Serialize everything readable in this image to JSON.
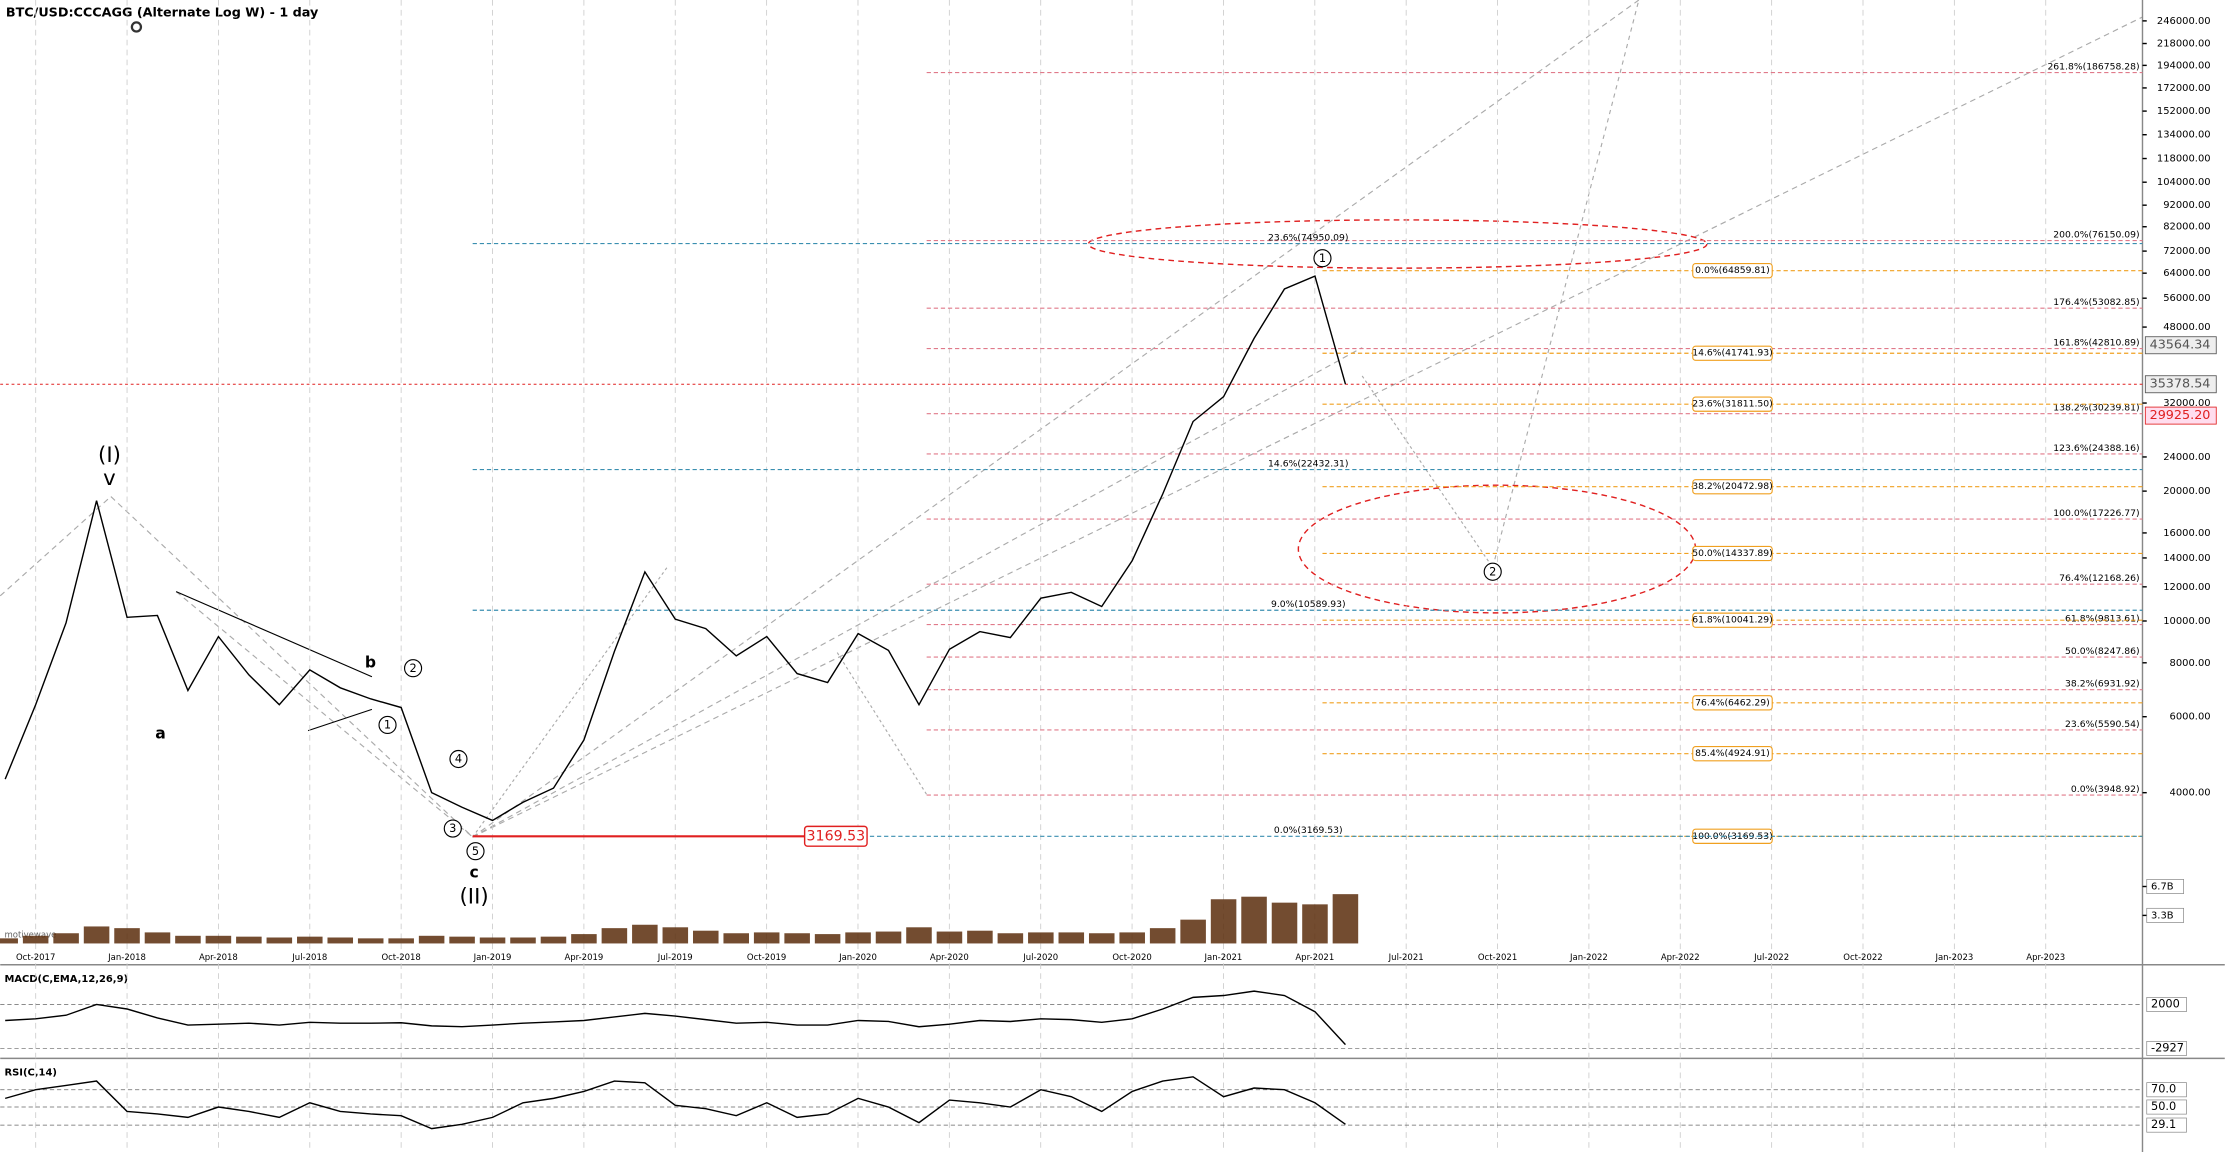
{
  "chart_data": [
    {
      "type": "line",
      "title": "BTC/USD:CCCAGG (Alternate Log W) - 1 day",
      "log_scale": true,
      "x": [
        "Sep-2017",
        "Oct-2017",
        "Nov-2017",
        "Dec-2017",
        "Jan-2018",
        "Feb-2018",
        "Mar-2018",
        "Apr-2018",
        "May-2018",
        "Jun-2018",
        "Jul-2018",
        "Aug-2018",
        "Sep-2018",
        "Oct-2018",
        "Nov-2018",
        "Dec-2018",
        "Jan-2019",
        "Feb-2019",
        "Mar-2019",
        "Apr-2019",
        "May-2019",
        "Jun-2019",
        "Jul-2019",
        "Aug-2019",
        "Sep-2019",
        "Oct-2019",
        "Nov-2019",
        "Dec-2019",
        "Jan-2020",
        "Feb-2020",
        "Mar-2020",
        "Apr-2020",
        "May-2020",
        "Jun-2020",
        "Jul-2020",
        "Aug-2020",
        "Sep-2020",
        "Oct-2020",
        "Nov-2020",
        "Dec-2020",
        "Jan-2021",
        "Feb-2021",
        "Mar-2021",
        "Apr-2021",
        "May-2021"
      ],
      "xticks": [
        "Oct-2017",
        "Jan-2018",
        "Apr-2018",
        "Jul-2018",
        "Oct-2018",
        "Jan-2019",
        "Apr-2019",
        "Jul-2019",
        "Oct-2019",
        "Jan-2020",
        "Apr-2020",
        "Jul-2020",
        "Oct-2020",
        "Jan-2021",
        "Apr-2021",
        "Jul-2021",
        "Oct-2021",
        "Jan-2022",
        "Apr-2022",
        "Jul-2022",
        "Oct-2022",
        "Jan-2023",
        "Apr-2023"
      ],
      "series": [
        {
          "name": "Price",
          "color": "#000000",
          "values": [
            4300,
            6400,
            9900,
            19000,
            10200,
            10300,
            6900,
            9200,
            7500,
            6400,
            7700,
            7000,
            6600,
            6300,
            4000,
            3700,
            3450,
            3800,
            4100,
            5300,
            8500,
            13000,
            10100,
            9600,
            8300,
            9200,
            7550,
            7200,
            9350,
            8550,
            6400,
            8600,
            9450,
            9150,
            11300,
            11650,
            10800,
            13800,
            19700,
            29000,
            33100,
            45200,
            58800,
            63000,
            35378
          ]
        },
        {
          "name": "Volume",
          "color": "#5a2d0c",
          "axis": "y2",
          "values": [
            600000000,
            900000000,
            1200000000,
            2000000000,
            1800000000,
            1300000000,
            900000000,
            900000000,
            800000000,
            700000000,
            800000000,
            700000000,
            600000000,
            600000000,
            900000000,
            800000000,
            700000000,
            700000000,
            800000000,
            1100000000,
            1800000000,
            2200000000,
            1900000000,
            1500000000,
            1200000000,
            1300000000,
            1200000000,
            1100000000,
            1300000000,
            1400000000,
            1900000000,
            1400000000,
            1500000000,
            1200000000,
            1300000000,
            1300000000,
            1200000000,
            1300000000,
            1800000000,
            2800000000,
            5200000000,
            5500000000,
            4800000000,
            4600000000,
            5800000000
          ]
        }
      ],
      "ylim": [
        1789,
        275000
      ],
      "yticks": [
        {
          "value": 246000,
          "label": "246000.00"
        },
        {
          "value": 218000,
          "label": "218000.00"
        },
        {
          "value": 194000,
          "label": "194000.00"
        },
        {
          "value": 172000,
          "label": "172000.00"
        },
        {
          "value": 152000,
          "label": "152000.00"
        },
        {
          "value": 134000,
          "label": "134000.00"
        },
        {
          "value": 118000,
          "label": "118000.00"
        },
        {
          "value": 104000,
          "label": "104000.00"
        },
        {
          "value": 92000,
          "label": "92000.00"
        },
        {
          "value": 82000,
          "label": "82000.00"
        },
        {
          "value": 72000,
          "label": "72000.00"
        },
        {
          "value": 64000,
          "label": "64000.00"
        },
        {
          "value": 56000,
          "label": "56000.00"
        },
        {
          "value": 48000,
          "label": "48000.00"
        },
        {
          "value": 32000,
          "label": "32000.00"
        },
        {
          "value": 24000,
          "label": "24000.00"
        },
        {
          "value": 20000,
          "label": "20000.00"
        },
        {
          "value": 16000,
          "label": "16000.00"
        },
        {
          "value": 14000,
          "label": "14000.00"
        },
        {
          "value": 12000,
          "label": "12000.00"
        },
        {
          "value": 10000,
          "label": "10000.00"
        },
        {
          "value": 8000,
          "label": "8000.00"
        },
        {
          "value": 6000,
          "label": "6000.00"
        },
        {
          "value": 4000,
          "label": "4000.00"
        }
      ],
      "y2lim": [
        0,
        111000000000
      ],
      "y2ticks": [
        {
          "value": 6700000000,
          "label": "6.7B"
        },
        {
          "value": 3300000000,
          "label": "3.3B"
        }
      ],
      "price_markers": [
        43564.34,
        35378.54,
        {
          "value": 29925.2,
          "label": "29925.20"
        }
      ],
      "support_level": 3169.53,
      "extension_levels": {
        "color": "#e07a8a",
        "levels": [
          {
            "value": 186758.28,
            "label": "261.8%(186758.28)"
          },
          {
            "value": 76150.09,
            "label": "200.0%(76150.09)"
          },
          {
            "value": 53082.85,
            "label": "176.4%(53082.85)"
          },
          {
            "value": 42810.89,
            "label": "161.8%(42810.89)"
          },
          {
            "value": 30239.81,
            "label": "138.2%(30239.81)"
          },
          {
            "value": 24388.16,
            "label": "123.6%(24388.16)"
          },
          {
            "value": 17226.77,
            "label": "100.0%(17226.77)"
          },
          {
            "value": 12168.26,
            "label": "76.4%(12168.26)"
          },
          {
            "value": 9813.61,
            "label": "61.8%(9813.61)"
          },
          {
            "value": 8247.86,
            "label": "50.0%(8247.86)"
          },
          {
            "value": 6931.92,
            "label": "38.2%(6931.92)"
          },
          {
            "value": 5590.54,
            "label": "23.6%(5590.54)"
          },
          {
            "value": 3948.92,
            "label": "0.0%(3948.92)"
          }
        ]
      },
      "retracement_levels": {
        "color": "#f0a020",
        "levels": [
          {
            "value": 64859.81,
            "label": "0.0%(64859.81)"
          },
          {
            "value": 41741.93,
            "label": "14.6%(41741.93)"
          },
          {
            "value": 31811.5,
            "label": "23.6%(31811.50)"
          },
          {
            "value": 20472.98,
            "label": "38.2%(20472.98)"
          },
          {
            "value": 14337.89,
            "label": "50.0%(14337.89)"
          },
          {
            "value": 10041.29,
            "label": "61.8%(10041.29)"
          },
          {
            "value": 6462.29,
            "label": "76.4%(6462.29)"
          },
          {
            "value": 4924.91,
            "label": "85.4%(4924.91)"
          },
          {
            "value": 3169.53,
            "label": "100.0%(3169.53)"
          }
        ]
      },
      "wave_levels": {
        "color": "#3a8fb0",
        "levels": [
          {
            "value": 74950.09,
            "label": "23.6%(74950.09)"
          },
          {
            "value": 22432.31,
            "label": "14.6%(22432.31)"
          },
          {
            "value": 10589.93,
            "label": "9.0%(10589.93)"
          },
          {
            "value": 3169.53,
            "label": "0.0%(3169.53)"
          }
        ]
      },
      "wave_labels": [
        "(I)",
        "v",
        "a",
        "b",
        "2",
        "1",
        "4",
        "3",
        "5",
        "c",
        "(II)",
        "1",
        "2"
      ],
      "watermark": "motivewave"
    },
    {
      "type": "line",
      "title": "MACD(C,EMA,12,26,9)",
      "series": [
        {
          "name": "MACD",
          "color": "#000000",
          "values": [
            200,
            400,
            800,
            2000,
            1500,
            500,
            -300,
            -200,
            -100,
            -300,
            0,
            -100,
            -100,
            -50,
            -400,
            -500,
            -300,
            -100,
            50,
            200,
            600,
            1000,
            700,
            300,
            -100,
            0,
            -300,
            -300,
            200,
            100,
            -500,
            -200,
            200,
            100,
            400,
            300,
            0,
            400,
            1500,
            2800,
            3000,
            3500,
            3000,
            1200,
            -2500
          ]
        }
      ],
      "ylim": [
        -3880,
        5980
      ],
      "yticks": [
        2000,
        -2927
      ]
    },
    {
      "type": "line",
      "title": "RSI(C,14)",
      "series": [
        {
          "name": "RSI",
          "color": "#000000",
          "values": [
            60,
            70,
            75,
            80,
            45,
            42,
            38,
            50,
            45,
            38,
            55,
            45,
            42,
            40,
            25,
            30,
            38,
            55,
            60,
            68,
            80,
            78,
            52,
            48,
            40,
            55,
            38,
            42,
            60,
            50,
            32,
            58,
            55,
            50,
            70,
            62,
            45,
            68,
            80,
            85,
            62,
            72,
            70,
            55,
            30
          ]
        }
      ],
      "ylim": [
        -2,
        103
      ],
      "yticks": [
        {
          "value": 70,
          "label": "70.0"
        },
        {
          "value": 50,
          "label": "50.0"
        },
        {
          "value": 29.1,
          "label": "29.1"
        }
      ]
    }
  ]
}
